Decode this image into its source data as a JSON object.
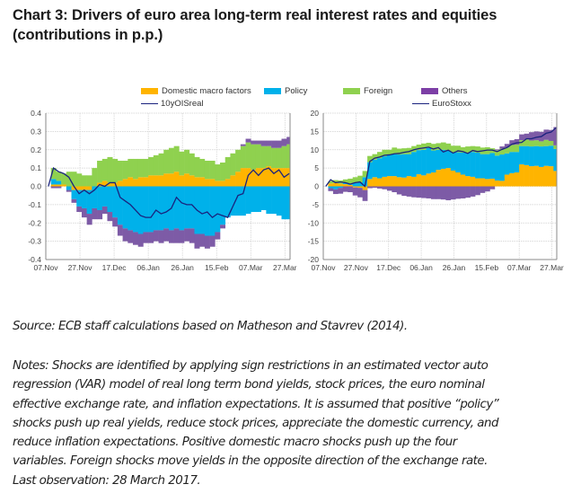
{
  "title_line1": "Chart 3: Drivers of euro area long-term real interest rates and equities",
  "title_line2": "(contributions in p.p.)",
  "legend": {
    "domestic": {
      "label": "Domestic macro factors",
      "color": "#FFB400"
    },
    "policy": {
      "label": "Policy",
      "color": "#00B1EA"
    },
    "foreign": {
      "label": "Foreign",
      "color": "#8FD14F"
    },
    "others": {
      "label": "Others",
      "color": "#7D5BA6"
    },
    "line_left": {
      "label": "10yOISreal",
      "color": "#1A237E"
    },
    "line_right": {
      "label": "EuroStoxx",
      "color": "#1A237E"
    }
  },
  "chart_data": [
    {
      "type": "area",
      "title": "",
      "xlabel": "",
      "ylabel": "",
      "x_ticks": [
        "07.Nov",
        "27.Nov",
        "17.Dec",
        "06.Jan",
        "26.Jan",
        "15.Feb",
        "07.Mar",
        "27.Mar"
      ],
      "x_start": "07.Nov.2016",
      "x_step_days": 3,
      "y_ticks": [
        "0.4",
        "0.3",
        "0.2",
        "0.1",
        "0.0",
        "-0.1",
        "-0.2",
        "-0.3",
        "-0.4"
      ],
      "ylim": [
        -0.4,
        0.4
      ],
      "grid": true,
      "stacked": true,
      "series": [
        {
          "name": "Domestic macro factors",
          "values": [
            0.0,
            0.01,
            0.01,
            0.01,
            0.0,
            -0.02,
            -0.02,
            -0.02,
            -0.02,
            0.0,
            0.02,
            0.03,
            0.02,
            0.02,
            0.03,
            0.04,
            0.05,
            0.04,
            0.05,
            0.05,
            0.06,
            0.06,
            0.06,
            0.07,
            0.07,
            0.08,
            0.06,
            0.07,
            0.06,
            0.05,
            0.05,
            0.04,
            0.04,
            0.03,
            0.03,
            0.04,
            0.06,
            0.08,
            0.1,
            0.1,
            0.09,
            0.1,
            0.1,
            0.11,
            0.1,
            0.1,
            0.1,
            0.1
          ]
        },
        {
          "name": "Policy",
          "values": [
            0.0,
            0.03,
            0.02,
            0.0,
            -0.02,
            -0.05,
            -0.09,
            -0.1,
            -0.13,
            -0.12,
            -0.13,
            -0.11,
            -0.14,
            -0.17,
            -0.21,
            -0.23,
            -0.24,
            -0.25,
            -0.26,
            -0.25,
            -0.25,
            -0.24,
            -0.24,
            -0.23,
            -0.24,
            -0.23,
            -0.24,
            -0.23,
            -0.23,
            -0.26,
            -0.26,
            -0.27,
            -0.27,
            -0.25,
            -0.21,
            -0.17,
            -0.16,
            -0.16,
            -0.16,
            -0.15,
            -0.14,
            -0.14,
            -0.13,
            -0.15,
            -0.15,
            -0.16,
            -0.18,
            -0.18
          ]
        },
        {
          "name": "Foreign",
          "values": [
            0.0,
            0.06,
            0.05,
            0.06,
            0.08,
            0.08,
            0.07,
            0.06,
            0.06,
            0.1,
            0.12,
            0.12,
            0.14,
            0.13,
            0.11,
            0.1,
            0.1,
            0.11,
            0.1,
            0.1,
            0.1,
            0.11,
            0.12,
            0.13,
            0.14,
            0.14,
            0.13,
            0.13,
            0.12,
            0.11,
            0.1,
            0.1,
            0.1,
            0.09,
            0.1,
            0.12,
            0.12,
            0.12,
            0.12,
            0.14,
            0.14,
            0.13,
            0.12,
            0.11,
            0.11,
            0.11,
            0.12,
            0.13
          ]
        },
        {
          "name": "Others",
          "values": [
            0.0,
            -0.01,
            -0.01,
            0.0,
            -0.01,
            -0.02,
            -0.03,
            -0.05,
            -0.06,
            -0.06,
            -0.05,
            -0.04,
            -0.05,
            -0.05,
            -0.06,
            -0.07,
            -0.07,
            -0.07,
            -0.07,
            -0.06,
            -0.06,
            -0.06,
            -0.07,
            -0.07,
            -0.07,
            -0.08,
            -0.07,
            -0.07,
            -0.08,
            -0.08,
            -0.07,
            -0.07,
            -0.06,
            -0.04,
            -0.02,
            0.0,
            0.0,
            0.0,
            0.01,
            0.02,
            0.02,
            0.02,
            0.03,
            0.03,
            0.04,
            0.04,
            0.04,
            0.04
          ]
        },
        {
          "name": "10yOISreal",
          "type": "line",
          "values": [
            0.0,
            0.1,
            0.08,
            0.07,
            0.05,
            0.0,
            -0.04,
            -0.02,
            -0.04,
            -0.02,
            0.01,
            0.0,
            0.02,
            0.02,
            -0.06,
            -0.08,
            -0.1,
            -0.13,
            -0.16,
            -0.17,
            -0.17,
            -0.13,
            -0.15,
            -0.14,
            -0.12,
            -0.06,
            -0.09,
            -0.1,
            -0.1,
            -0.13,
            -0.15,
            -0.14,
            -0.17,
            -0.15,
            -0.16,
            -0.17,
            -0.11,
            -0.05,
            -0.04,
            0.06,
            0.09,
            0.06,
            0.09,
            0.1,
            0.07,
            0.09,
            0.05,
            0.07
          ]
        }
      ]
    },
    {
      "type": "area",
      "title": "",
      "xlabel": "",
      "ylabel": "",
      "x_ticks": [
        "07.Nov",
        "27.Nov",
        "17.Dec",
        "06.Jan",
        "26.Jan",
        "15.Feb",
        "07.Mar",
        "27.Mar"
      ],
      "x_start": "07.Nov.2016",
      "x_step_days": 3,
      "y_ticks": [
        "20",
        "15",
        "10",
        "5",
        "0",
        "-5",
        "-10",
        "-15",
        "-20"
      ],
      "ylim": [
        -20,
        20
      ],
      "grid": true,
      "stacked": true,
      "series": [
        {
          "name": "Domestic macro factors",
          "values": [
            0.0,
            0.8,
            0.9,
            0.7,
            0.6,
            0.4,
            -0.3,
            -0.4,
            -1.0,
            2.0,
            2.5,
            2.2,
            2.6,
            2.8,
            2.8,
            2.5,
            2.4,
            2.8,
            2.6,
            3.3,
            3.0,
            3.5,
            3.8,
            4.5,
            4.8,
            5.0,
            4.3,
            3.8,
            3.2,
            2.8,
            2.6,
            2.2,
            2.2,
            2.0,
            2.1,
            1.6,
            1.5,
            3.2,
            3.6,
            3.8,
            6.0,
            5.8,
            5.5,
            5.6,
            5.3,
            5.6,
            5.5,
            4.2
          ]
        },
        {
          "name": "Policy",
          "values": [
            0.0,
            -0.5,
            -0.8,
            -0.4,
            0.3,
            0.4,
            0.9,
            1.1,
            2.5,
            4.6,
            4.8,
            5.5,
            5.6,
            5.8,
            6.0,
            6.2,
            6.4,
            6.0,
            6.8,
            6.6,
            7.0,
            7.0,
            6.0,
            5.5,
            5.2,
            4.8,
            5.0,
            5.5,
            6.0,
            6.4,
            6.8,
            7.0,
            6.6,
            6.8,
            7.0,
            6.8,
            7.2,
            5.8,
            5.8,
            5.6,
            5.0,
            5.2,
            5.4,
            5.4,
            5.6,
            5.4,
            5.6,
            6.0
          ]
        },
        {
          "name": "Foreign",
          "values": [
            0.0,
            0.6,
            0.8,
            0.9,
            1.0,
            1.3,
            1.6,
            1.8,
            1.7,
            1.7,
            1.5,
            1.7,
            1.8,
            1.4,
            1.8,
            1.6,
            1.6,
            1.7,
            1.6,
            1.5,
            1.7,
            1.4,
            1.8,
            1.8,
            2.0,
            1.9,
            1.8,
            1.8,
            1.5,
            1.7,
            1.6,
            1.7,
            1.8,
            1.9,
            1.3,
            1.5,
            1.6,
            1.6,
            1.9,
            2.0,
            1.6,
            1.8,
            1.6,
            1.6,
            1.4,
            1.7,
            1.3,
            1.0
          ]
        },
        {
          "name": "Others",
          "values": [
            0.0,
            -0.8,
            -1.3,
            -1.6,
            -1.5,
            -1.6,
            -2.2,
            -2.6,
            -3.0,
            -0.5,
            -0.4,
            -0.6,
            -0.8,
            -1.2,
            -1.6,
            -2.2,
            -2.6,
            -2.8,
            -3.0,
            -3.1,
            -3.2,
            -3.3,
            -3.5,
            -3.5,
            -3.6,
            -3.8,
            -3.6,
            -3.4,
            -3.3,
            -3.1,
            -2.8,
            -2.4,
            -1.8,
            -1.4,
            -0.8,
            0.2,
            0.6,
            1.0,
            1.3,
            1.5,
            1.6,
            1.6,
            2.3,
            2.4,
            2.6,
            2.8,
            3.0,
            5.0
          ]
        },
        {
          "name": "EuroStoxx",
          "type": "line",
          "values": [
            0.0,
            1.8,
            1.0,
            1.2,
            1.0,
            0.6,
            1.0,
            1.2,
            0.0,
            6.8,
            7.7,
            8.0,
            8.5,
            8.6,
            8.9,
            9.0,
            9.3,
            9.5,
            10.0,
            10.3,
            10.5,
            10.7,
            10.2,
            10.6,
            9.4,
            9.9,
            9.1,
            9.7,
            9.5,
            9.0,
            9.8,
            9.5,
            9.7,
            9.9,
            9.9,
            9.5,
            10.1,
            10.6,
            11.5,
            11.9,
            12.0,
            13.0,
            13.0,
            13.4,
            13.6,
            14.5,
            14.8,
            16.0
          ]
        }
      ]
    }
  ],
  "source_text": "Source: ECB staff calculations based on Matheson and Stavrev (2014).",
  "notes_lines": [
    "Notes: Shocks are identified by applying sign restrictions in an estimated vector auto",
    "regression (VAR) model of real long term bond yields, stock prices, the euro nominal",
    "effective exchange rate, and inflation expectations. It is assumed that positive “policy”",
    "shocks push up real yields, reduce stock prices, appreciate the domestic currency, and",
    "reduce inflation expectations. Positive domestic macro shocks push up the four",
    "variables. Foreign shocks move yields in the opposite direction of the exchange rate.",
    "Last observation: 28 March 2017."
  ]
}
